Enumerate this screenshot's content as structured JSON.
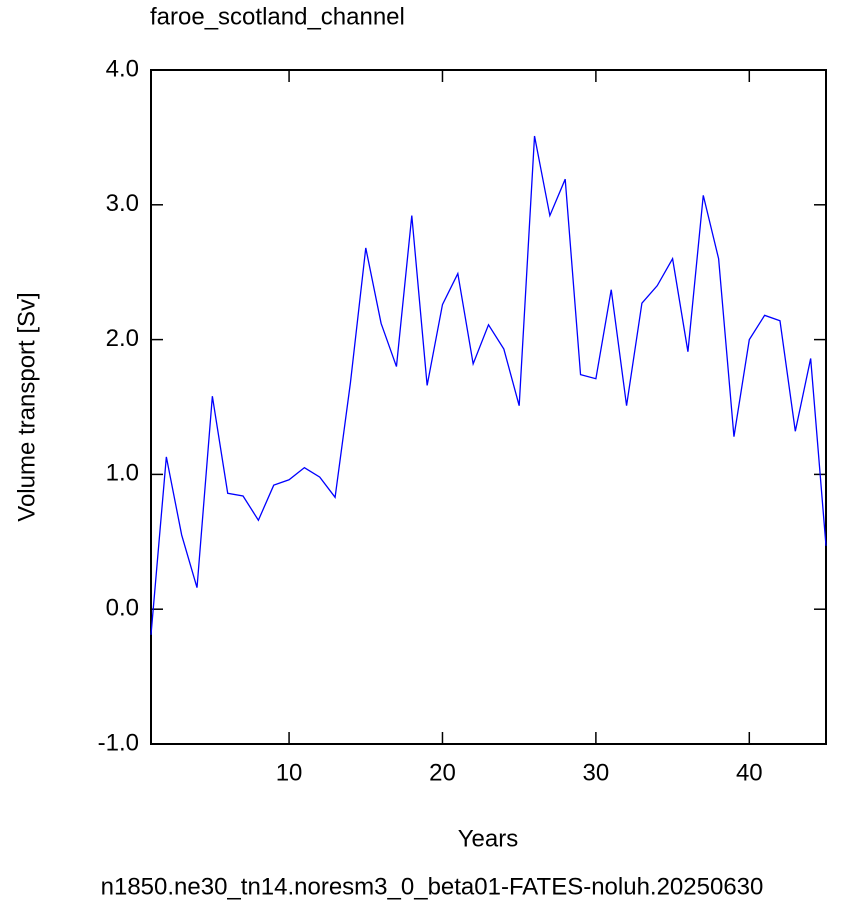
{
  "chart_data": {
    "type": "line",
    "title": "faroe_scotland_channel",
    "xlabel": "Years",
    "ylabel": "Volume transport [Sv]",
    "footer": "n1850.ne30_tn14.noresm3_0_beta01-FATES-noluh.20250630",
    "footer_color": "#0000ff",
    "x": [
      1,
      2,
      3,
      4,
      5,
      6,
      7,
      8,
      9,
      10,
      11,
      12,
      13,
      14,
      15,
      16,
      17,
      18,
      19,
      20,
      21,
      22,
      23,
      24,
      25,
      26,
      27,
      28,
      29,
      30,
      31,
      32,
      33,
      34,
      35,
      36,
      37,
      38,
      39,
      40,
      41,
      42,
      43,
      44,
      45
    ],
    "series": [
      {
        "color": "#0000ff",
        "values": [
          -0.19,
          1.13,
          0.55,
          0.16,
          1.58,
          0.86,
          0.84,
          0.66,
          0.92,
          0.96,
          1.05,
          0.98,
          0.83,
          1.68,
          2.68,
          2.12,
          1.8,
          2.92,
          1.66,
          2.26,
          2.49,
          1.82,
          2.11,
          1.93,
          1.51,
          3.51,
          2.92,
          3.19,
          1.74,
          1.71,
          2.37,
          1.51,
          2.27,
          2.4,
          2.6,
          1.91,
          3.07,
          2.6,
          1.28,
          2.0,
          2.18,
          2.14,
          1.32,
          1.86,
          0.47
        ]
      }
    ],
    "xlim": [
      1,
      45
    ],
    "xticks": [
      10,
      20,
      30,
      40
    ],
    "ylim": [
      -1,
      4
    ],
    "yticks": [
      {
        "value": -1,
        "label": "-1.0"
      },
      {
        "value": 0,
        "label": "0.0"
      },
      {
        "value": 1,
        "label": "1.0"
      },
      {
        "value": 2,
        "label": "2.0"
      },
      {
        "value": 3,
        "label": "3.0"
      },
      {
        "value": 4,
        "label": "4.0"
      }
    ],
    "grid": false
  }
}
